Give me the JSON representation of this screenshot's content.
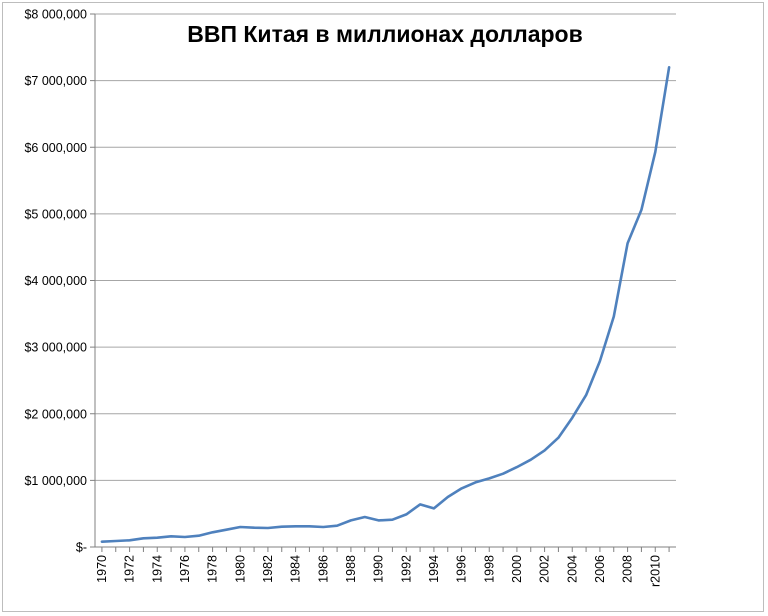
{
  "chart_data": {
    "type": "line",
    "title": "ВВП Китая в миллионах долларов",
    "xlabel": "",
    "ylabel": "",
    "x": [
      1970,
      1971,
      1972,
      1973,
      1974,
      1975,
      1976,
      1977,
      1978,
      1979,
      1980,
      1981,
      1982,
      1983,
      1984,
      1985,
      1986,
      1987,
      1988,
      1989,
      1990,
      1991,
      1992,
      1993,
      1994,
      1995,
      1996,
      1997,
      1998,
      1999,
      2000,
      2001,
      2002,
      2003,
      2004,
      2005,
      2006,
      2007,
      2008,
      2009,
      2010,
      2011
    ],
    "series": [
      {
        "values": [
          80000,
          90000,
          100000,
          130000,
          140000,
          160000,
          150000,
          170000,
          220000,
          260000,
          300000,
          290000,
          285000,
          305000,
          310000,
          310000,
          300000,
          320000,
          400000,
          450000,
          400000,
          410000,
          490000,
          640000,
          580000,
          750000,
          880000,
          970000,
          1030000,
          1100000,
          1200000,
          1310000,
          1450000,
          1640000,
          1940000,
          2280000,
          2790000,
          3460000,
          4560000,
          5060000,
          5930000,
          7200000
        ],
        "color": "#4f81bd"
      }
    ],
    "ylim": [
      0,
      8000000
    ],
    "y_ticks": [
      0,
      1000000,
      2000000,
      3000000,
      4000000,
      5000000,
      6000000,
      7000000,
      8000000
    ],
    "y_tick_labels": [
      "$-",
      "$1 000,000",
      "$2 000,000",
      "$3 000,000",
      "$4 000,000",
      "$5 000,000",
      "$6 000,000",
      "$7 000,000",
      "$8 000,000"
    ],
    "x_tick_values": [
      1970,
      1972,
      1974,
      1976,
      1978,
      1980,
      1982,
      1984,
      1986,
      1988,
      1990,
      1992,
      1994,
      1996,
      1998,
      2000,
      2002,
      2004,
      2006,
      2008,
      2010
    ],
    "x_tick_labels": [
      "1970",
      "1972",
      "1974",
      "1976",
      "1978",
      "1980",
      "1982",
      "1984",
      "1986",
      "1988",
      "1990",
      "1992",
      "1994",
      "1996",
      "1998",
      "2000",
      "2002",
      "2004",
      "2006",
      "2008",
      "r2010"
    ],
    "grid": true,
    "legend": "none",
    "grid_color": "#a6a6a6"
  }
}
